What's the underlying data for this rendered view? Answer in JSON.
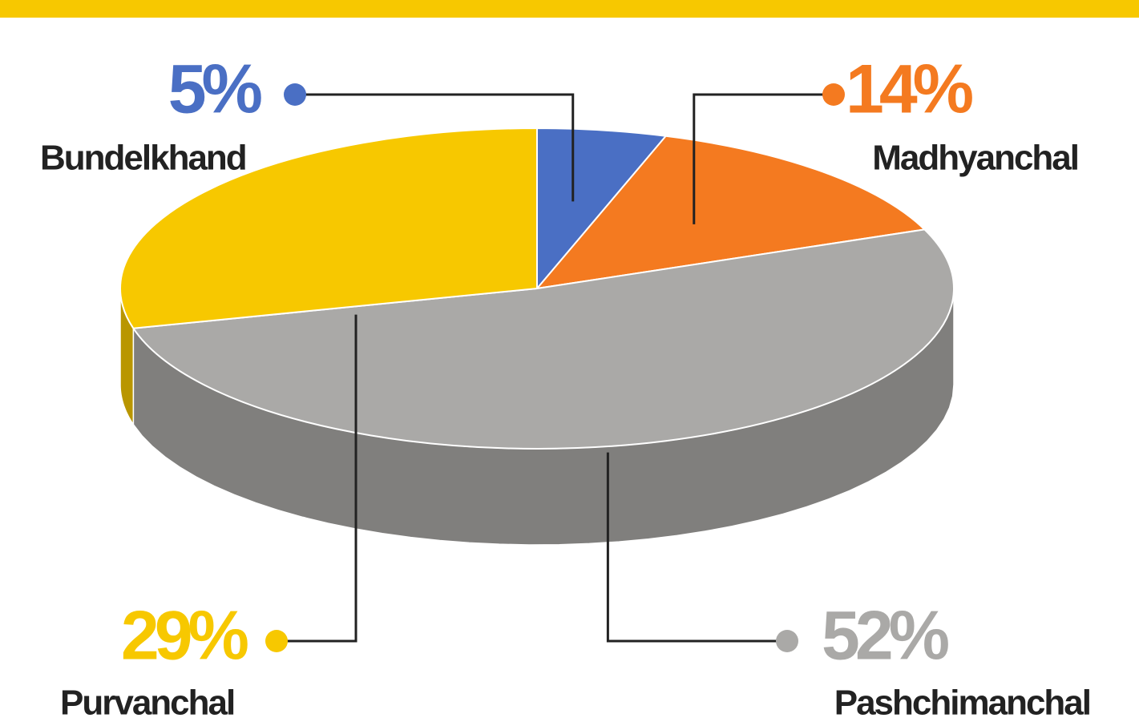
{
  "chart_data": {
    "type": "pie",
    "categories": [
      "Bundelkhand",
      "Madhyanchal",
      "Pashchimanchal",
      "Purvanchal"
    ],
    "values": [
      5,
      14,
      52,
      29
    ],
    "value_labels": [
      "5%",
      "14%",
      "52%",
      "29%"
    ],
    "colors": [
      "#4a6fc4",
      "#f47a20",
      "#aaa9a7",
      "#f7c800"
    ]
  }
}
